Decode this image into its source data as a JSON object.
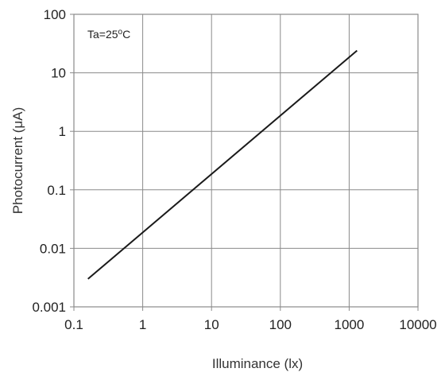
{
  "chart_data": {
    "type": "line",
    "title": "",
    "xlabel": "Illuminance  (lx)",
    "ylabel": "Photocurrent  (μA)",
    "x_scale": "log",
    "y_scale": "log",
    "xlim": [
      0.1,
      10000
    ],
    "ylim": [
      0.001,
      100
    ],
    "x_ticks": [
      "0.1",
      "1",
      "10",
      "100",
      "1000",
      "10000"
    ],
    "y_ticks": [
      "0.001",
      "0.01",
      "0.1",
      "1",
      "10",
      "100"
    ],
    "grid": true,
    "annotation": {
      "prefix": "Ta=25",
      "superscript": "o",
      "suffix": "C"
    },
    "series": [
      {
        "color": "#1a1a1a",
        "x": [
          0.16,
          1300
        ],
        "y": [
          0.003,
          24
        ]
      }
    ]
  }
}
